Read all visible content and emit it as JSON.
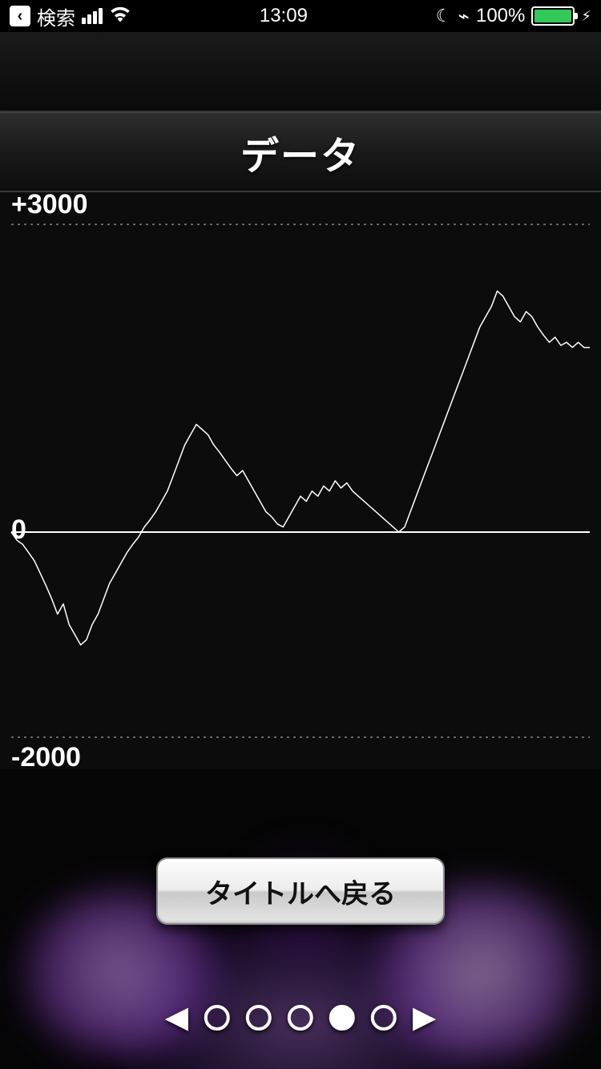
{
  "status_bar": {
    "back_label": "検索",
    "time": "13:09",
    "battery_pct": "100%",
    "battery_fill_pct": 100,
    "battery_color": "#34c759"
  },
  "header": {
    "title": "データ"
  },
  "chart": {
    "type": "line",
    "y_upper_label": "+3000",
    "y_zero_label": "0",
    "y_lower_label": "-2000",
    "ylim": [
      -2000,
      3000
    ],
    "x_range": [
      0,
      100
    ],
    "line_color": "#ffffff",
    "line_width": 1.5,
    "zero_line_color": "#ffffff",
    "zero_line_width": 2,
    "grid_dash_color": "#666666",
    "background": "#0a0a0a",
    "label_fontsize": 34,
    "label_color": "#ffffff",
    "upper_ref_y": 3000,
    "lower_ref_y": -2000,
    "points": [
      [
        0,
        0
      ],
      [
        1,
        -80
      ],
      [
        2,
        -120
      ],
      [
        3,
        -200
      ],
      [
        4,
        -280
      ],
      [
        5,
        -400
      ],
      [
        6,
        -520
      ],
      [
        7,
        -650
      ],
      [
        8,
        -800
      ],
      [
        9,
        -700
      ],
      [
        10,
        -900
      ],
      [
        11,
        -1000
      ],
      [
        12,
        -1100
      ],
      [
        13,
        -1050
      ],
      [
        14,
        -900
      ],
      [
        15,
        -800
      ],
      [
        16,
        -650
      ],
      [
        17,
        -500
      ],
      [
        18,
        -400
      ],
      [
        19,
        -300
      ],
      [
        20,
        -200
      ],
      [
        21,
        -120
      ],
      [
        22,
        -50
      ],
      [
        23,
        50
      ],
      [
        24,
        120
      ],
      [
        25,
        200
      ],
      [
        26,
        300
      ],
      [
        27,
        400
      ],
      [
        28,
        550
      ],
      [
        29,
        700
      ],
      [
        30,
        850
      ],
      [
        31,
        950
      ],
      [
        32,
        1050
      ],
      [
        33,
        1000
      ],
      [
        34,
        950
      ],
      [
        35,
        850
      ],
      [
        36,
        780
      ],
      [
        37,
        700
      ],
      [
        38,
        620
      ],
      [
        39,
        550
      ],
      [
        40,
        600
      ],
      [
        41,
        500
      ],
      [
        42,
        400
      ],
      [
        43,
        300
      ],
      [
        44,
        200
      ],
      [
        45,
        150
      ],
      [
        46,
        80
      ],
      [
        47,
        50
      ],
      [
        48,
        150
      ],
      [
        49,
        250
      ],
      [
        50,
        350
      ],
      [
        51,
        300
      ],
      [
        52,
        400
      ],
      [
        53,
        350
      ],
      [
        54,
        450
      ],
      [
        55,
        400
      ],
      [
        56,
        500
      ],
      [
        57,
        430
      ],
      [
        58,
        480
      ],
      [
        59,
        400
      ],
      [
        60,
        350
      ],
      [
        61,
        300
      ],
      [
        62,
        250
      ],
      [
        63,
        200
      ],
      [
        64,
        150
      ],
      [
        65,
        100
      ],
      [
        66,
        50
      ],
      [
        67,
        0
      ],
      [
        68,
        50
      ],
      [
        69,
        200
      ],
      [
        70,
        350
      ],
      [
        71,
        500
      ],
      [
        72,
        650
      ],
      [
        73,
        800
      ],
      [
        74,
        950
      ],
      [
        75,
        1100
      ],
      [
        76,
        1250
      ],
      [
        77,
        1400
      ],
      [
        78,
        1550
      ],
      [
        79,
        1700
      ],
      [
        80,
        1850
      ],
      [
        81,
        2000
      ],
      [
        82,
        2100
      ],
      [
        83,
        2200
      ],
      [
        84,
        2350
      ],
      [
        85,
        2300
      ],
      [
        86,
        2200
      ],
      [
        87,
        2100
      ],
      [
        88,
        2050
      ],
      [
        89,
        2150
      ],
      [
        90,
        2100
      ],
      [
        91,
        2000
      ],
      [
        92,
        1920
      ],
      [
        93,
        1850
      ],
      [
        94,
        1900
      ],
      [
        95,
        1820
      ],
      [
        96,
        1850
      ],
      [
        97,
        1800
      ],
      [
        98,
        1850
      ],
      [
        99,
        1800
      ],
      [
        100,
        1800
      ]
    ]
  },
  "footer": {
    "return_label": "タイトルへ戻る",
    "page_count": 5,
    "active_page": 4,
    "button_bg_gradient": [
      "#fdfdfd",
      "#ececec",
      "#c9c9c9",
      "#e6e6e6"
    ],
    "button_text_color": "#111111",
    "dot_border_color": "#ffffff",
    "arrow_color": "#ffffff"
  },
  "decor": {
    "glow_primary": "#d8a0ff",
    "glow_secondary": "#7030a0"
  }
}
